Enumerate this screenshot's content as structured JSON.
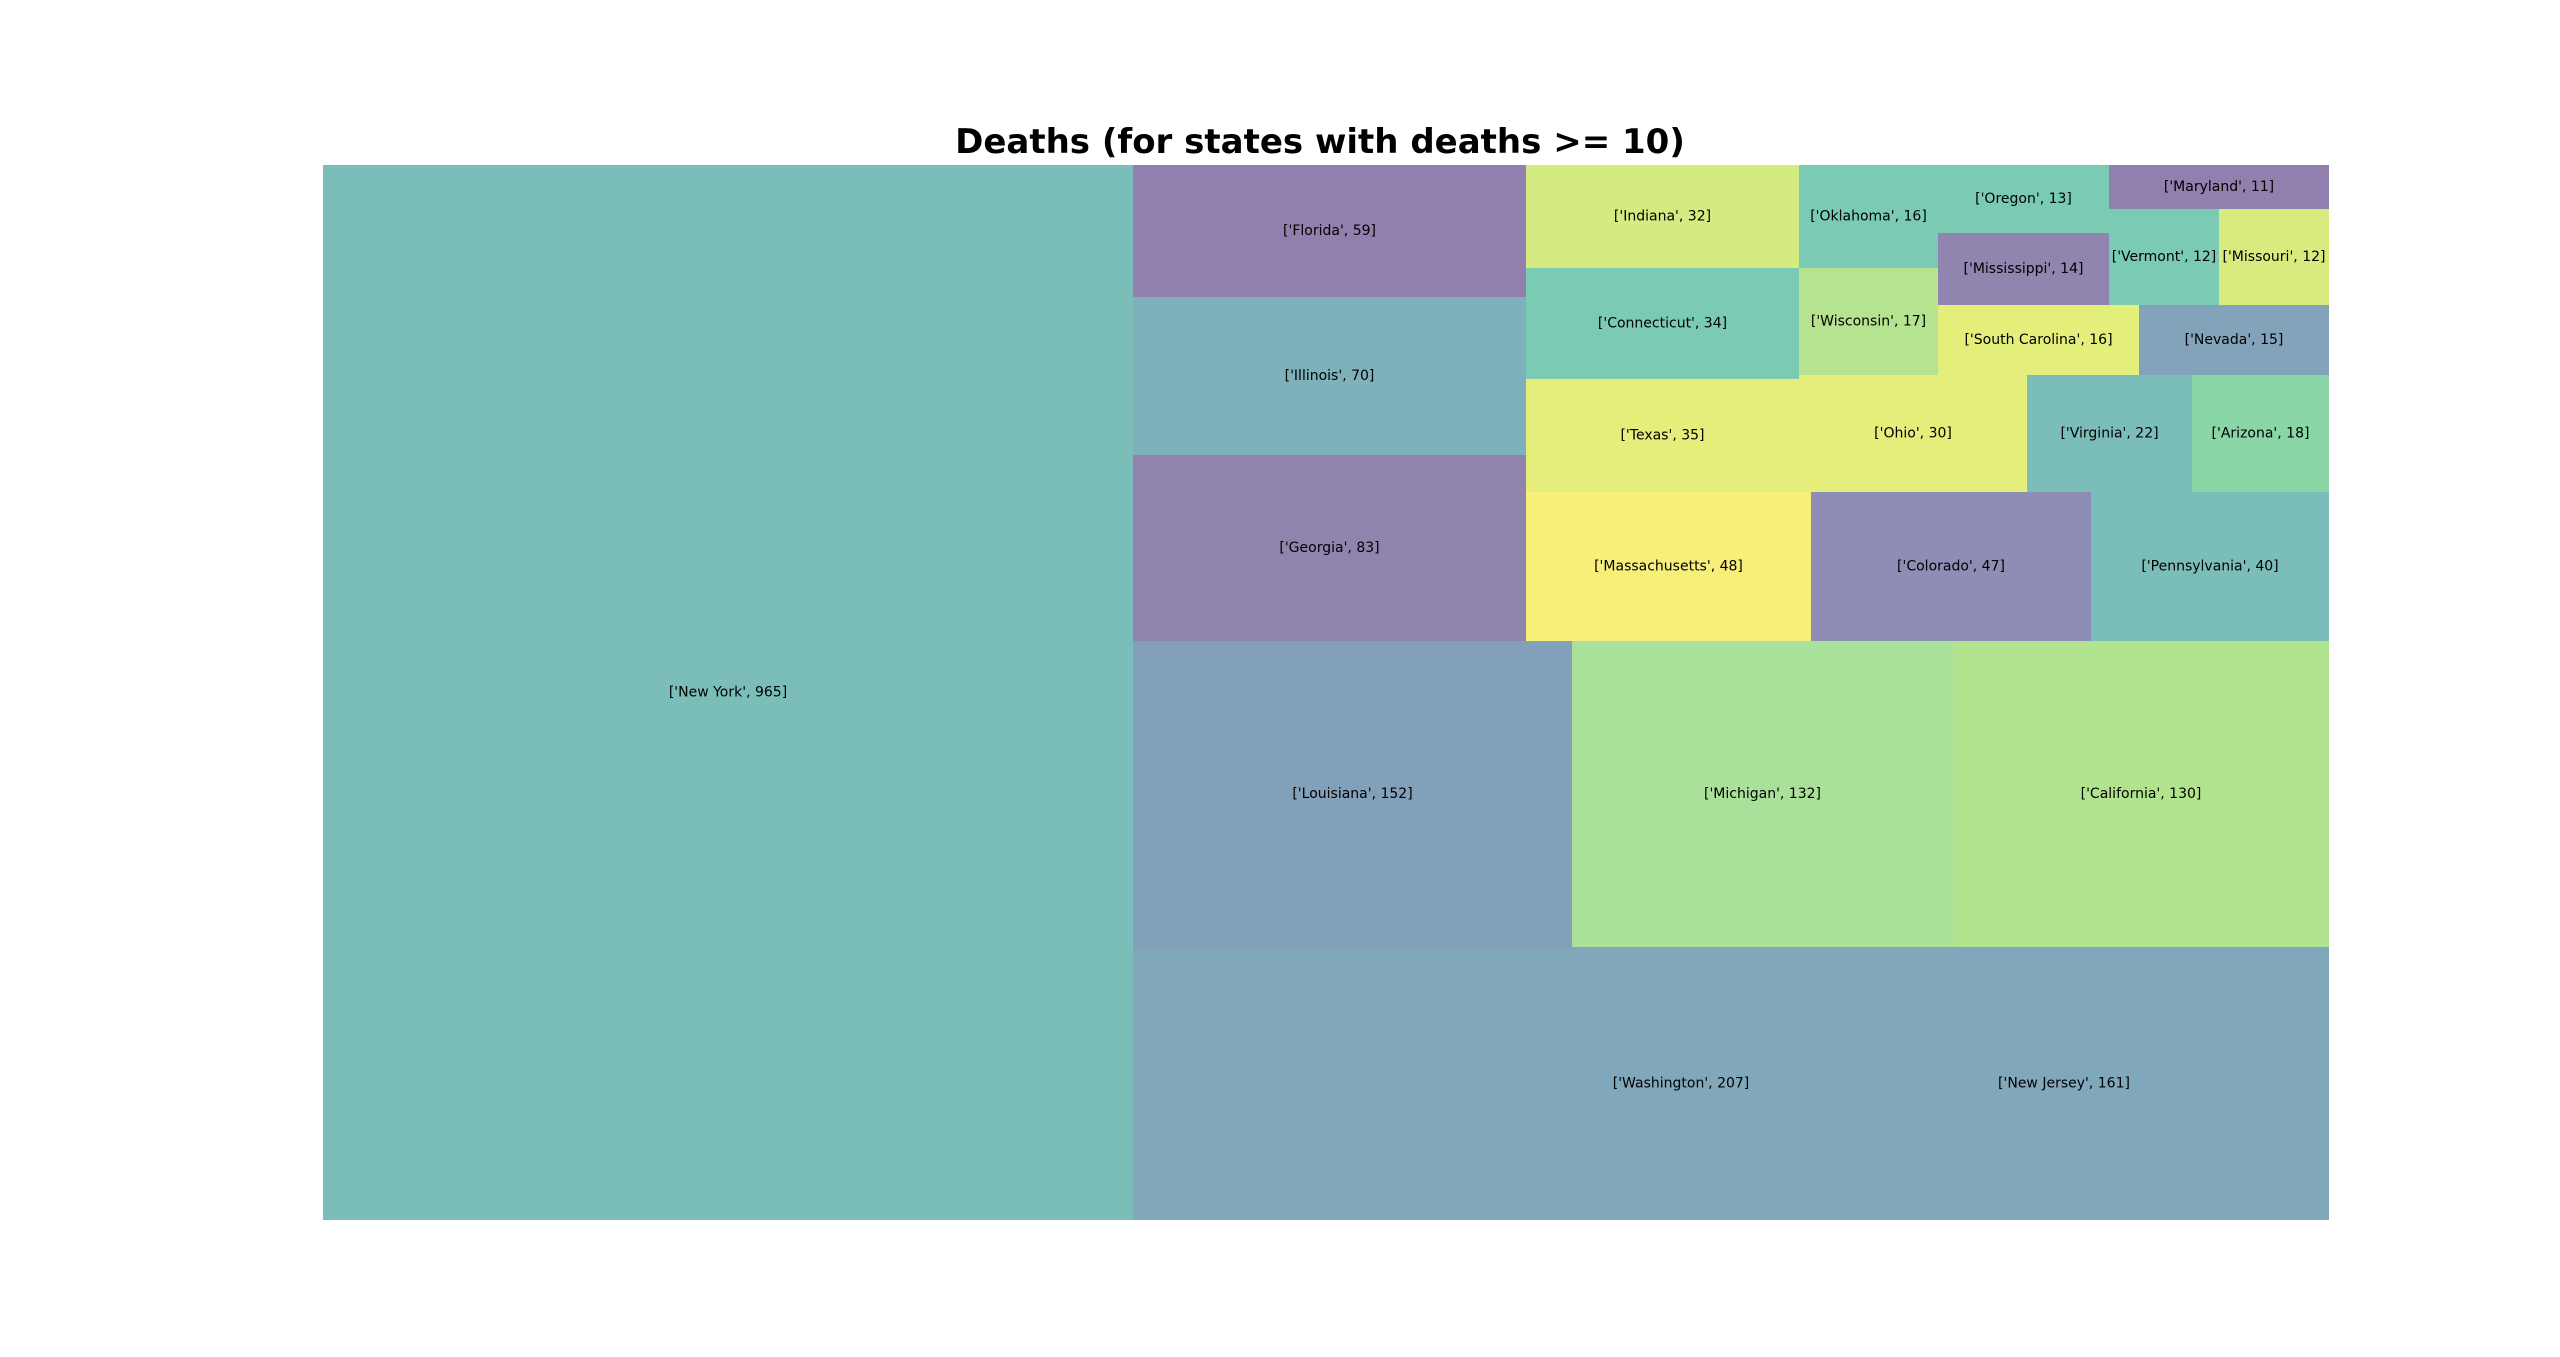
{
  "chart_data": {
    "type": "treemap",
    "title": "Deaths (for states with deaths >= 10)",
    "items": [
      {
        "label": "['New York', 965]",
        "state": "New York",
        "value": 965,
        "color": "#7bbeb9"
      },
      {
        "label": "['Washington', 207]",
        "state": "Washington",
        "value": 207,
        "color": "#81a8ba"
      },
      {
        "label": "['New Jersey', 161]",
        "state": "New Jersey",
        "value": 161,
        "color": "#81a8ba"
      },
      {
        "label": "['Louisiana', 152]",
        "state": "Louisiana",
        "value": 152,
        "color": "#83a0ba"
      },
      {
        "label": "['Michigan', 132]",
        "state": "Michigan",
        "value": 132,
        "color": "#aae19a"
      },
      {
        "label": "['California', 130]",
        "state": "California",
        "value": 130,
        "color": "#b2e38f"
      },
      {
        "label": "['Georgia', 83]",
        "state": "Georgia",
        "value": 83,
        "color": "#9083ae"
      },
      {
        "label": "['Illinois', 70]",
        "state": "Illinois",
        "value": 70,
        "color": "#7fb1ba"
      },
      {
        "label": "['Florida', 59]",
        "state": "Florida",
        "value": 59,
        "color": "#917fae"
      },
      {
        "label": "['Massachusetts', 48]",
        "state": "Massachusetts",
        "value": 48,
        "color": "#f8ef7b"
      },
      {
        "label": "['Colorado', 47]",
        "state": "Colorado",
        "value": 47,
        "color": "#8d8db5"
      },
      {
        "label": "['Pennsylvania', 40]",
        "state": "Pennsylvania",
        "value": 40,
        "color": "#7bbeb9"
      },
      {
        "label": "['Texas', 35]",
        "state": "Texas",
        "value": 35,
        "color": "#e5ed7b"
      },
      {
        "label": "['Connecticut', 34]",
        "state": "Connecticut",
        "value": 34,
        "color": "#7bcab4"
      },
      {
        "label": "['Indiana', 32]",
        "state": "Indiana",
        "value": 32,
        "color": "#d4eb81"
      },
      {
        "label": "['Ohio', 30]",
        "state": "Ohio",
        "value": 30,
        "color": "#e5ed7b"
      },
      {
        "label": "['Virginia', 22]",
        "state": "Virginia",
        "value": 22,
        "color": "#7bbeb9"
      },
      {
        "label": "['Arizona', 18]",
        "state": "Arizona",
        "value": 18,
        "color": "#8ad6a7"
      },
      {
        "label": "['Wisconsin', 17]",
        "state": "Wisconsin",
        "value": 17,
        "color": "#b6e38f"
      },
      {
        "label": "['Oklahoma', 16]",
        "state": "Oklahoma",
        "value": 16,
        "color": "#7bcab4"
      },
      {
        "label": "['South Carolina', 16]",
        "state": "South Carolina",
        "value": 16,
        "color": "#e3ee7b"
      },
      {
        "label": "['Nevada', 15]",
        "state": "Nevada",
        "value": 15,
        "color": "#83a3ba"
      },
      {
        "label": "['Mississippi', 14]",
        "state": "Mississippi",
        "value": 14,
        "color": "#9184ae"
      },
      {
        "label": "['Oregon', 13]",
        "state": "Oregon",
        "value": 13,
        "color": "#7bcab4"
      },
      {
        "label": "['Vermont', 12]",
        "state": "Vermont",
        "value": 12,
        "color": "#7bcab4"
      },
      {
        "label": "['Missouri', 12]",
        "state": "Missouri",
        "value": 12,
        "color": "#d8eb7f"
      },
      {
        "label": "['Maryland', 11]",
        "state": "Maryland",
        "value": 11,
        "color": "#917fae"
      }
    ]
  }
}
